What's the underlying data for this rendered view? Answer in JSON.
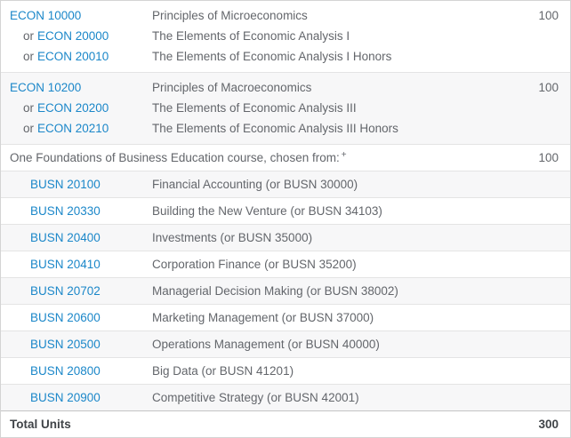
{
  "colors": {
    "link_blue": "#1b87c9",
    "body_text_gray": "#63666b",
    "alt_row_bg": "#f7f7f8",
    "row_border": "#e4e4e4",
    "outer_border": "#d4d4d4",
    "total_row_border": "#c4c4c4",
    "total_text": "#404448"
  },
  "table": {
    "columns": [
      "course_code",
      "course_title",
      "units"
    ],
    "rows": [
      {
        "type": "group",
        "units": "100",
        "lines": [
          {
            "code": "ECON 10000",
            "title": "Principles of Microeconomics"
          },
          {
            "prefix": "or",
            "code": "ECON 20000",
            "title": "The Elements of Economic Analysis I"
          },
          {
            "prefix": "or",
            "code": "ECON 20010",
            "title": "The Elements of Economic Analysis I Honors"
          }
        ]
      },
      {
        "type": "group",
        "units": "100",
        "lines": [
          {
            "code": "ECON 10200",
            "title": "Principles of Macroeconomics"
          },
          {
            "prefix": "or",
            "code": "ECON 20200",
            "title": "The Elements of Economic Analysis III"
          },
          {
            "prefix": "or",
            "code": "ECON 20210",
            "title": "The Elements of Economic Analysis III Honors"
          }
        ]
      },
      {
        "type": "comment",
        "text": "One Foundations of Business Education course, chosen from:",
        "superscript": "+",
        "units": "100"
      },
      {
        "type": "course",
        "code": "BUSN 20100",
        "title": "Financial Accounting (or BUSN 30000)",
        "units": ""
      },
      {
        "type": "course",
        "code": "BUSN 20330",
        "title": "Building the New Venture (or BUSN 34103)",
        "units": ""
      },
      {
        "type": "course",
        "code": "BUSN 20400",
        "title": "Investments (or BUSN 35000)",
        "units": ""
      },
      {
        "type": "course",
        "code": "BUSN 20410",
        "title": "Corporation Finance (or BUSN 35200)",
        "units": ""
      },
      {
        "type": "course",
        "code": "BUSN 20702",
        "title": "Managerial Decision Making (or BUSN 38002)",
        "units": ""
      },
      {
        "type": "course",
        "code": "BUSN 20600",
        "title": "Marketing Management (or BUSN 37000)",
        "units": ""
      },
      {
        "type": "course",
        "code": "BUSN 20500",
        "title": "Operations Management (or BUSN 40000)",
        "units": ""
      },
      {
        "type": "course",
        "code": "BUSN 20800",
        "title": "Big Data (or BUSN 41201)",
        "units": ""
      },
      {
        "type": "course",
        "code": "BUSN 20900",
        "title": "Competitive Strategy (or BUSN 42001)",
        "units": ""
      },
      {
        "type": "total",
        "label": "Total Units",
        "units": "300"
      }
    ]
  }
}
